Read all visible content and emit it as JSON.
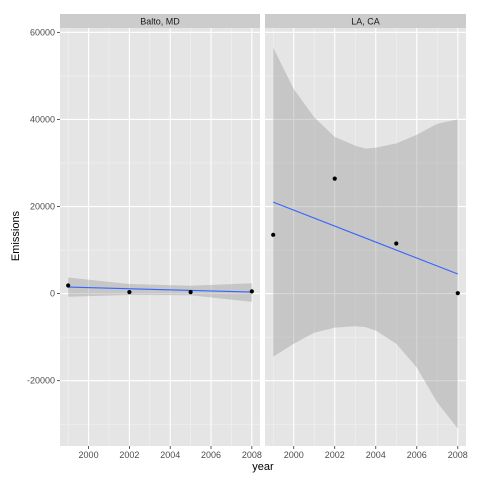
{
  "chart_data": {
    "type": "scatter",
    "xlabel": "year",
    "ylabel": "Emissions",
    "xlim": [
      1998.6,
      2008.4
    ],
    "ylim": [
      -35000,
      61000
    ],
    "x_ticks": [
      2000,
      2002,
      2004,
      2006,
      2008
    ],
    "y_ticks": [
      -20000,
      0,
      20000,
      40000,
      60000
    ],
    "grid": true,
    "colors": {
      "panel_bg": "#e5e5e5",
      "strip_bg": "#cccccc",
      "grid_major": "#ffffff",
      "grid_minor": "#f2f2f2",
      "ribbon": "#999999",
      "fit_line": "#3366ff",
      "point": "#000000"
    },
    "panels": [
      {
        "strip": "Balto, MD",
        "points": [
          {
            "x": 1999,
            "y": 1862
          },
          {
            "x": 2002,
            "y": 341
          },
          {
            "x": 2005,
            "y": 340
          },
          {
            "x": 2008,
            "y": 509
          }
        ],
        "fit": {
          "x": [
            1999,
            2008
          ],
          "y": [
            1500,
            350
          ]
        },
        "band": {
          "x": [
            1999,
            2002,
            2005,
            2008
          ],
          "upper": [
            3700,
            2200,
            1800,
            2400
          ],
          "lower": [
            -700,
            -300,
            -400,
            -1900
          ]
        }
      },
      {
        "strip": "LA, CA",
        "points": [
          {
            "x": 1999,
            "y": 13500
          },
          {
            "x": 2002,
            "y": 26400
          },
          {
            "x": 2005,
            "y": 11500
          },
          {
            "x": 2008,
            "y": 100
          }
        ],
        "fit": {
          "x": [
            1999,
            2008
          ],
          "y": [
            21000,
            4500
          ]
        },
        "band": {
          "x": [
            1999,
            2000,
            2001,
            2002,
            2003,
            2003.5,
            2004,
            2005,
            2006,
            2007,
            2008
          ],
          "upper": [
            56500,
            47000,
            40500,
            36000,
            34000,
            33300,
            33500,
            34500,
            36500,
            39000,
            40000
          ],
          "lower": [
            -14500,
            -11500,
            -9000,
            -7800,
            -7500,
            -7700,
            -8500,
            -11500,
            -17000,
            -25000,
            -31000
          ]
        }
      }
    ]
  }
}
